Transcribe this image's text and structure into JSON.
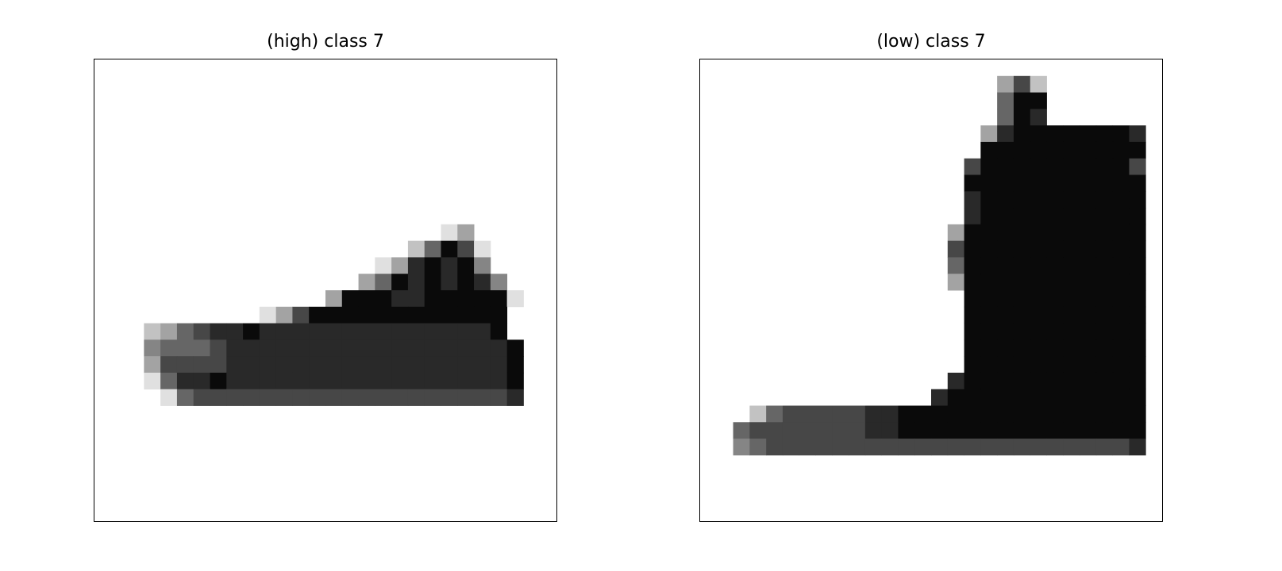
{
  "panels": [
    {
      "title": "(high) class 7",
      "grid_size": 28,
      "image_description_rows": [
        "0000000000000000000000000000",
        "0000000000000000000000000000",
        "0000000000000000000000000000",
        "0000000000000000000000000000",
        "0000000000000000000000000000",
        "0000000000000000000000000000",
        "0000000000000000000000000000",
        "0000000000000000000000000000",
        "0000000000000000000000000000",
        "0000000000000000000000000000",
        "0000000000000000000001300000",
        "0000000000000000000258610000",
        "0000000000000000013787840000",
        "0000000000000000358787874000",
        "0000000000000038887788888100",
        "0000000000136888888888888000",
        "0002356778777777777777778000",
        "0004555677777777777777777800",
        "0003666677777777777777777800",
        "0001577877777777777777777800",
        "0000156666666666666666666700",
        "0000000000000000000000000000",
        "0000000000000000000000000000",
        "0000000000000000000000000000",
        "0000000000000000000000000000",
        "0000000000000000000000000000",
        "0000000000000000000000000000",
        "0000000000000000000000000000"
      ]
    },
    {
      "title": "(low) class 7",
      "grid_size": 28,
      "image_description_rows": [
        "0000000000000000000000000000",
        "0000000000000000003620000000",
        "0000000000000000005880000000",
        "0000000000000000005870000000",
        "0000000000000000037888888870",
        "0000000000000000088888888880",
        "0000000000000000688888888860",
        "0000000000000000888888888880",
        "0000000000000000788888888880",
        "0000000000000000788888888880",
        "0000000000000003888888888880",
        "0000000000000006888888888880",
        "0000000000000005888888888880",
        "0000000000000003888888888880",
        "0000000000000000888888888880",
        "0000000000000000888888888880",
        "0000000000000000888888888880",
        "0000000000000000888888888880",
        "0000000000000000888888888880",
        "0000000000000007888888888880",
        "0000000000000078888888888880",
        "0002566666778888888888888880",
        "0056666666778888888888888880",
        "0045666666666666666666666670",
        "0000000000000000000000000000",
        "0000000000000000000000000000",
        "0000000000000000000000000000",
        "0000000000000000000000000000"
      ]
    }
  ]
}
